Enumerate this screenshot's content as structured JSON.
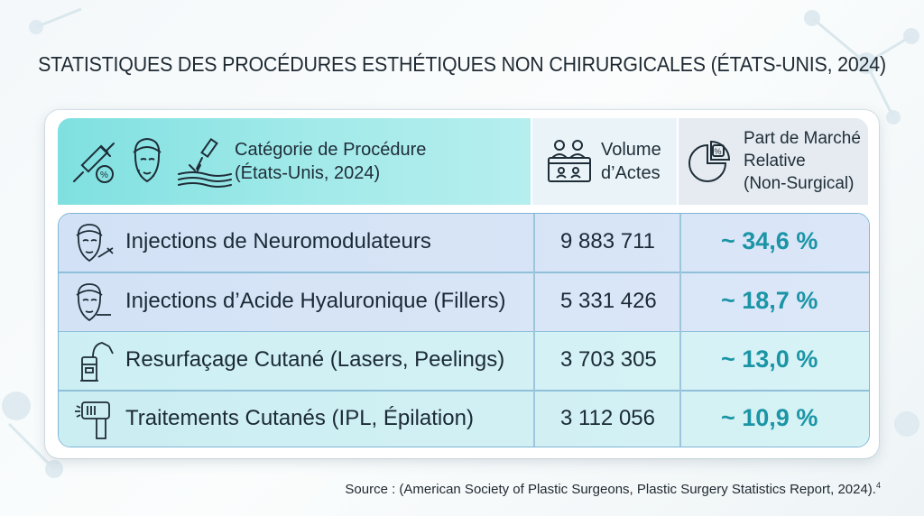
{
  "title": "STATISTIQUES DES PROCÉDURES ESTHÉTIQUES NON CHIRURGICALES (ÉTATS-UNIS, 2024)",
  "header": {
    "category_line1": "Catégorie de Procédure",
    "category_line2": "(États-Unis, 2024)",
    "volume_line1": "Volume",
    "volume_line2": "d’Actes",
    "share_line1": "Part de Marché",
    "share_line2": "Relative",
    "share_line3": "(Non-Surgical)"
  },
  "rows": [
    {
      "label": "Injections de Neuromodulateurs",
      "volume": "9 883 711",
      "share": "~ 34,6 %",
      "icon": "face-injection-icon"
    },
    {
      "label": "Injections d’Acide Hyaluronique (Fillers)",
      "volume": "5 331 426",
      "share": "~ 18,7 %",
      "icon": "face-filler-icon"
    },
    {
      "label": "Resurfaçage Cutané (Lasers, Peelings)",
      "volume": "3 703 305",
      "share": "~ 13,0 %",
      "icon": "laser-device-icon"
    },
    {
      "label": "Traitements Cutanés (IPL, Épilation)",
      "volume": "3 112 056",
      "share": "~ 10,9 %",
      "icon": "ipl-device-icon"
    }
  ],
  "source": "Source : (American Society of Plastic Surgeons, Plastic Surgery Statistics Report, 2024).",
  "source_ref": "4",
  "colors": {
    "header_teal": "#7fe0e0",
    "row_blue": "#d9e6f7",
    "row_cyan": "#d3f1f5",
    "percent_teal": "#1b95a6"
  }
}
